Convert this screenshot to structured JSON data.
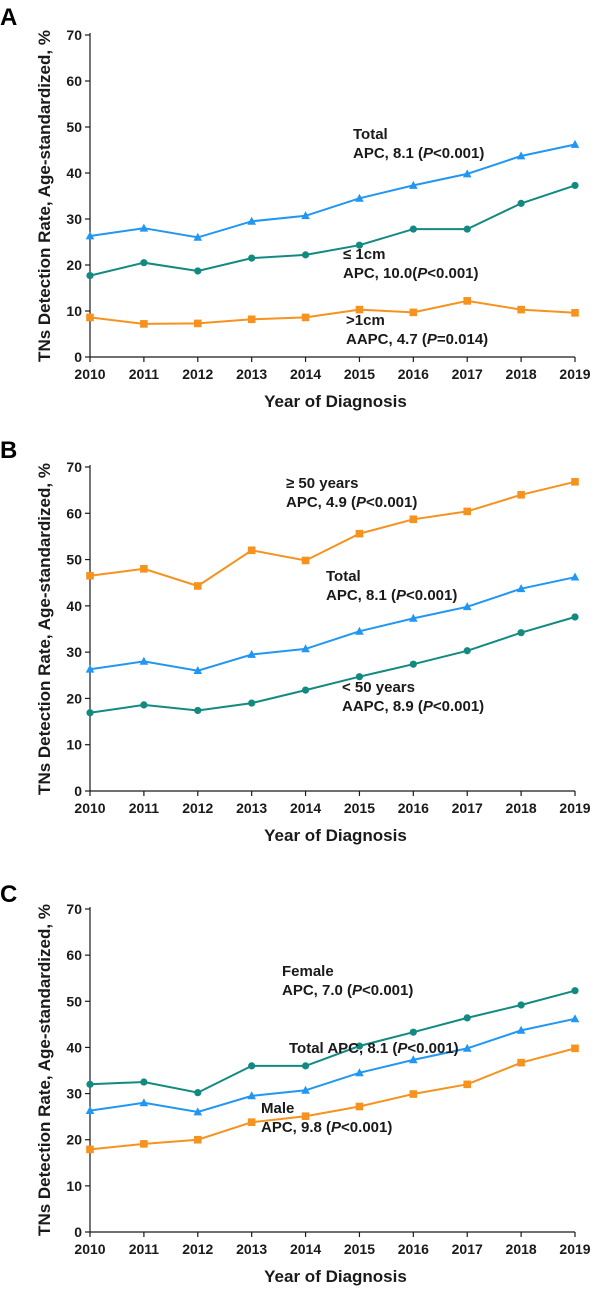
{
  "chart_data": [
    {
      "panel": "A",
      "type": "line",
      "xlabel": "Year of Diagnosis",
      "ylabel": "TNs Detection Rate, Age-standardized, %",
      "ylim": [
        0,
        70
      ],
      "yticks": [
        "0",
        "10",
        "20",
        "30",
        "40",
        "50",
        "60",
        "70"
      ],
      "categories": [
        "2010",
        "2011",
        "2012",
        "2013",
        "2014",
        "2015",
        "2016",
        "2017",
        "2018",
        "2019"
      ],
      "grid": false,
      "series": [
        {
          "color": "#2196F3",
          "marker": "triangle",
          "values": [
            26.3,
            28.0,
            26.0,
            29.5,
            30.7,
            34.5,
            37.3,
            39.8,
            43.7,
            46.2
          ]
        },
        {
          "color": "#138a80",
          "marker": "circle",
          "values": [
            17.7,
            20.5,
            18.7,
            21.5,
            22.2,
            24.3,
            27.8,
            27.8,
            33.4,
            37.3
          ]
        },
        {
          "color": "#F6921E",
          "marker": "square",
          "values": [
            8.6,
            7.2,
            7.3,
            8.2,
            8.6,
            10.3,
            9.7,
            12.2,
            10.3,
            9.6
          ]
        }
      ],
      "annotations": [
        {
          "lines": [
            [
              "Total"
            ],
            [
              "APC, 8.1 (",
              {
                "i": "P"
              },
              "<0.001)"
            ]
          ]
        },
        {
          "lines": [
            [
              "≤ 1cm"
            ],
            [
              "APC, 10.0(",
              {
                "i": "P"
              },
              "<0.001)"
            ]
          ]
        },
        {
          "lines": [
            [
              ">1cm"
            ],
            [
              "AAPC, 4.7 (",
              {
                "i": "P"
              },
              "=0.014)"
            ]
          ]
        }
      ]
    },
    {
      "panel": "B",
      "type": "line",
      "xlabel": "Year of Diagnosis",
      "ylabel": "TNs Detection Rate, Age-standardized, %",
      "ylim": [
        0,
        70
      ],
      "yticks": [
        "0",
        "10",
        "20",
        "30",
        "40",
        "50",
        "60",
        "70"
      ],
      "categories": [
        "2010",
        "2011",
        "2012",
        "2013",
        "2014",
        "2015",
        "2016",
        "2017",
        "2018",
        "2019"
      ],
      "grid": false,
      "series": [
        {
          "color": "#F6921E",
          "marker": "square",
          "values": [
            46.5,
            48.0,
            44.3,
            52.0,
            49.8,
            55.6,
            58.7,
            60.4,
            64.0,
            66.8
          ]
        },
        {
          "color": "#2196F3",
          "marker": "triangle",
          "values": [
            26.3,
            28.0,
            26.0,
            29.5,
            30.7,
            34.5,
            37.3,
            39.8,
            43.7,
            46.2
          ]
        },
        {
          "color": "#138a80",
          "marker": "circle",
          "values": [
            16.9,
            18.6,
            17.4,
            19.0,
            21.8,
            24.7,
            27.4,
            30.3,
            34.2,
            37.6
          ]
        }
      ],
      "annotations": [
        {
          "lines": [
            [
              "≥ 50 years"
            ],
            [
              "APC, 4.9 (",
              {
                "i": "P"
              },
              "<0.001)"
            ]
          ]
        },
        {
          "lines": [
            [
              "Total"
            ],
            [
              "APC, 8.1 (",
              {
                "i": "P"
              },
              "<0.001)"
            ]
          ]
        },
        {
          "lines": [
            [
              "< 50 years"
            ],
            [
              "AAPC, 8.9 (",
              {
                "i": "P"
              },
              "<0.001)"
            ]
          ]
        }
      ]
    },
    {
      "panel": "C",
      "type": "line",
      "xlabel": "Year of Diagnosis",
      "ylabel": "TNs Detection Rate, Age-standardized, %",
      "ylim": [
        0,
        70
      ],
      "yticks": [
        "0",
        "10",
        "20",
        "30",
        "40",
        "50",
        "60",
        "70"
      ],
      "categories": [
        "2010",
        "2011",
        "2012",
        "2013",
        "2014",
        "2015",
        "2016",
        "2017",
        "2018",
        "2019"
      ],
      "grid": false,
      "series": [
        {
          "color": "#138a80",
          "marker": "circle",
          "values": [
            32.0,
            32.5,
            30.2,
            36.0,
            36.0,
            40.3,
            43.3,
            46.4,
            49.2,
            52.3
          ]
        },
        {
          "color": "#2196F3",
          "marker": "triangle",
          "values": [
            26.3,
            28.0,
            26.0,
            29.5,
            30.7,
            34.5,
            37.3,
            39.8,
            43.7,
            46.2
          ]
        },
        {
          "color": "#F6921E",
          "marker": "square",
          "values": [
            17.9,
            19.1,
            20.0,
            23.8,
            25.1,
            27.2,
            29.9,
            32.0,
            36.7,
            39.8
          ]
        }
      ],
      "annotations": [
        {
          "lines": [
            [
              "Female"
            ],
            [
              "APC, 7.0 (",
              {
                "i": "P"
              },
              "<0.001)"
            ]
          ]
        },
        {
          "lines": [
            [
              "Total APC, 8.1 (",
              {
                "i": "P"
              },
              "<0.001)"
            ]
          ]
        },
        {
          "lines": [
            [
              "Male"
            ],
            [
              "APC, 9.8 (",
              {
                "i": "P"
              },
              "<0.001)"
            ]
          ]
        }
      ]
    }
  ]
}
